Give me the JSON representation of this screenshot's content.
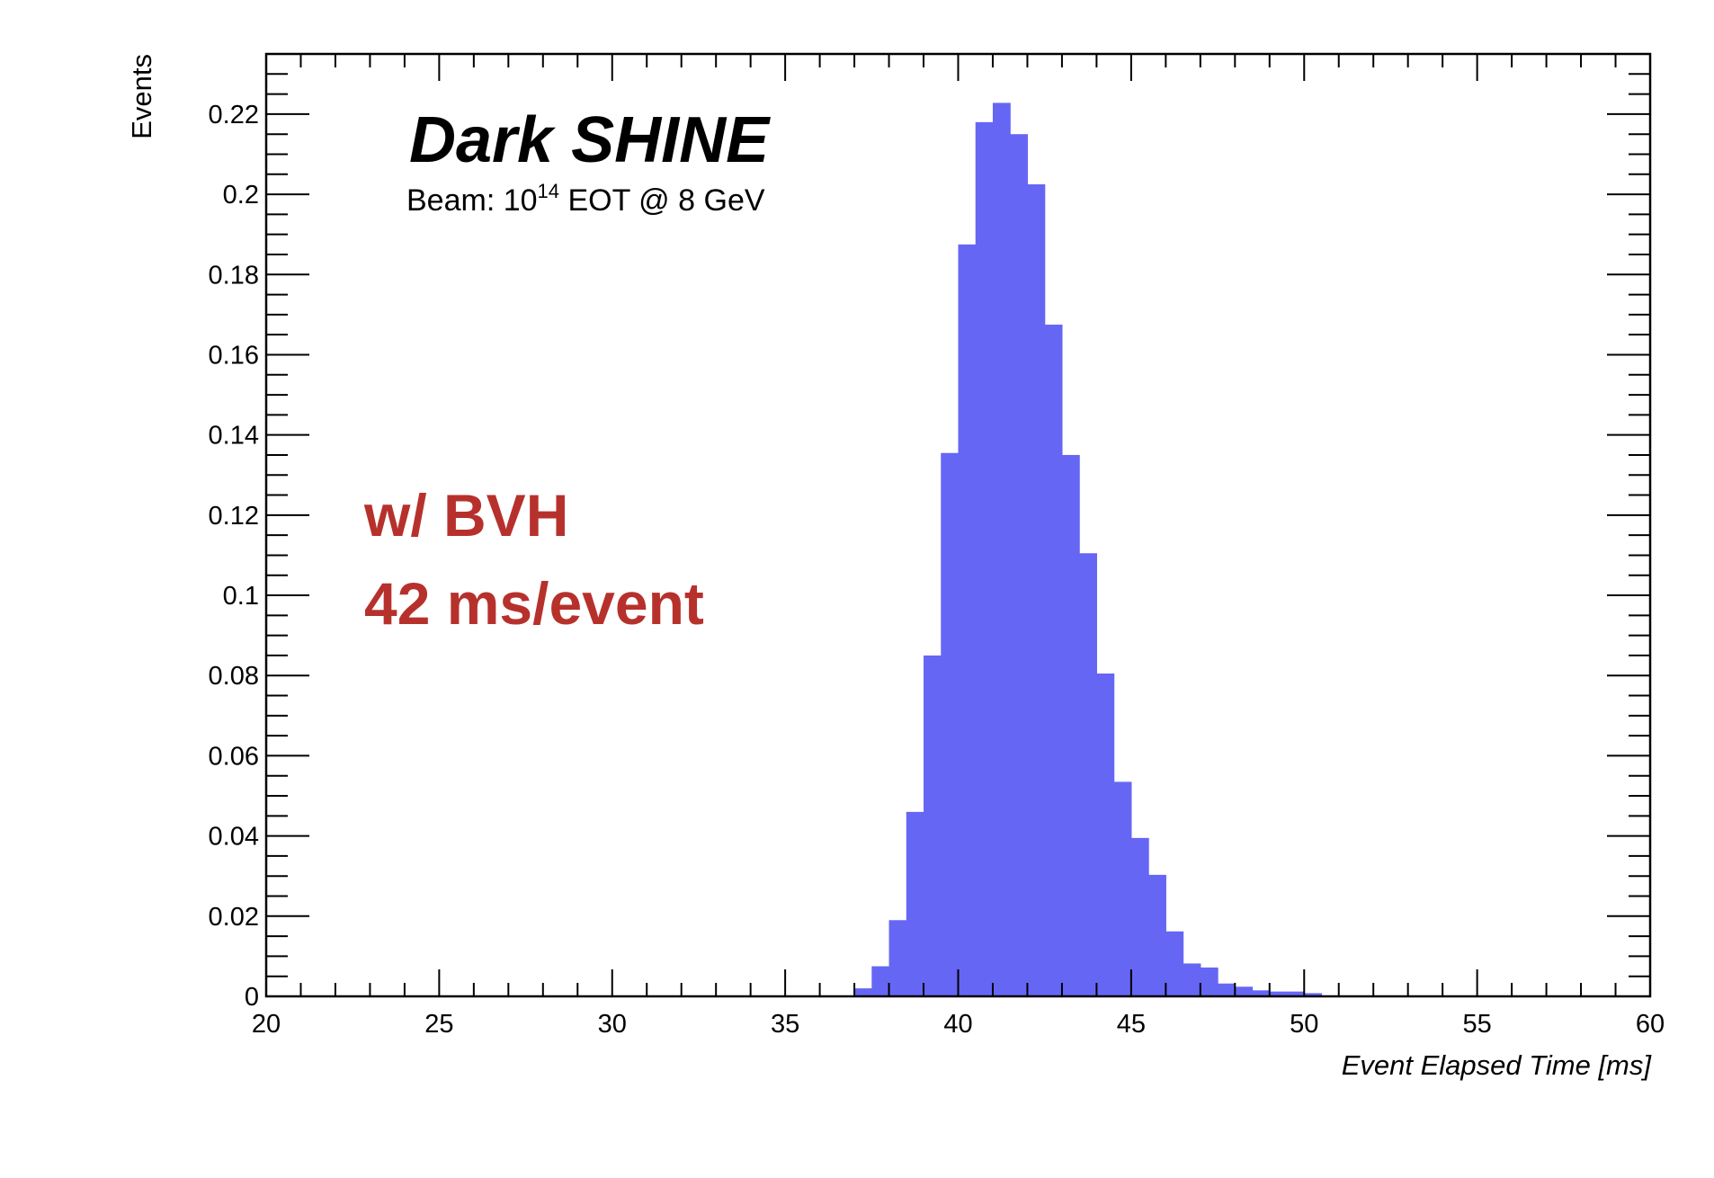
{
  "chart_data": {
    "type": "bar",
    "xlabel": "Event Elapsed Time [ms]",
    "ylabel": "Events",
    "xlim": [
      20,
      60
    ],
    "ylim": [
      0,
      0.235
    ],
    "xticks": [
      20,
      25,
      30,
      35,
      40,
      45,
      50,
      55,
      60
    ],
    "yticks": [
      0,
      0.02,
      0.04,
      0.06,
      0.08,
      0.1,
      0.12,
      0.14,
      0.16,
      0.18,
      0.2,
      0.22
    ],
    "ytick_labels": [
      "0",
      "0.02",
      "0.04",
      "0.06",
      "0.08",
      "0.1",
      "0.12",
      "0.14",
      "0.16",
      "0.18",
      "0.2",
      "0.22"
    ],
    "xtick_labels": [
      "20",
      "25",
      "30",
      "35",
      "40",
      "45",
      "50",
      "55",
      "60"
    ],
    "grid": false,
    "bin_width": 0.5,
    "bin_edges_start": [
      37,
      37.5,
      38,
      38.5,
      39,
      39.5,
      40,
      40.5,
      41,
      41.5,
      42,
      42.5,
      43,
      43.5,
      44,
      44.5,
      45,
      45.5,
      46,
      46.5,
      47,
      47.5,
      48,
      48.5,
      49,
      49.5,
      50
    ],
    "values": [
      0.002,
      0.0075,
      0.019,
      0.046,
      0.085,
      0.1355,
      0.1875,
      0.218,
      0.2228,
      0.215,
      0.2025,
      0.1675,
      0.135,
      0.1105,
      0.0805,
      0.0535,
      0.0395,
      0.0303,
      0.0162,
      0.0082,
      0.0072,
      0.0032,
      0.0024,
      0.0015,
      0.0012,
      0.0012,
      0.0008
    ],
    "bar_color": "#6666f5",
    "annotations": {
      "brand": "Dark SHINE",
      "beam_prefix": "Beam: 10",
      "beam_exponent": "14",
      "beam_suffix": " EOT @ 8 GeV",
      "note_line1": "w/ BVH",
      "note_line2": "42 ms/event"
    },
    "note_color": "#b7312c"
  }
}
